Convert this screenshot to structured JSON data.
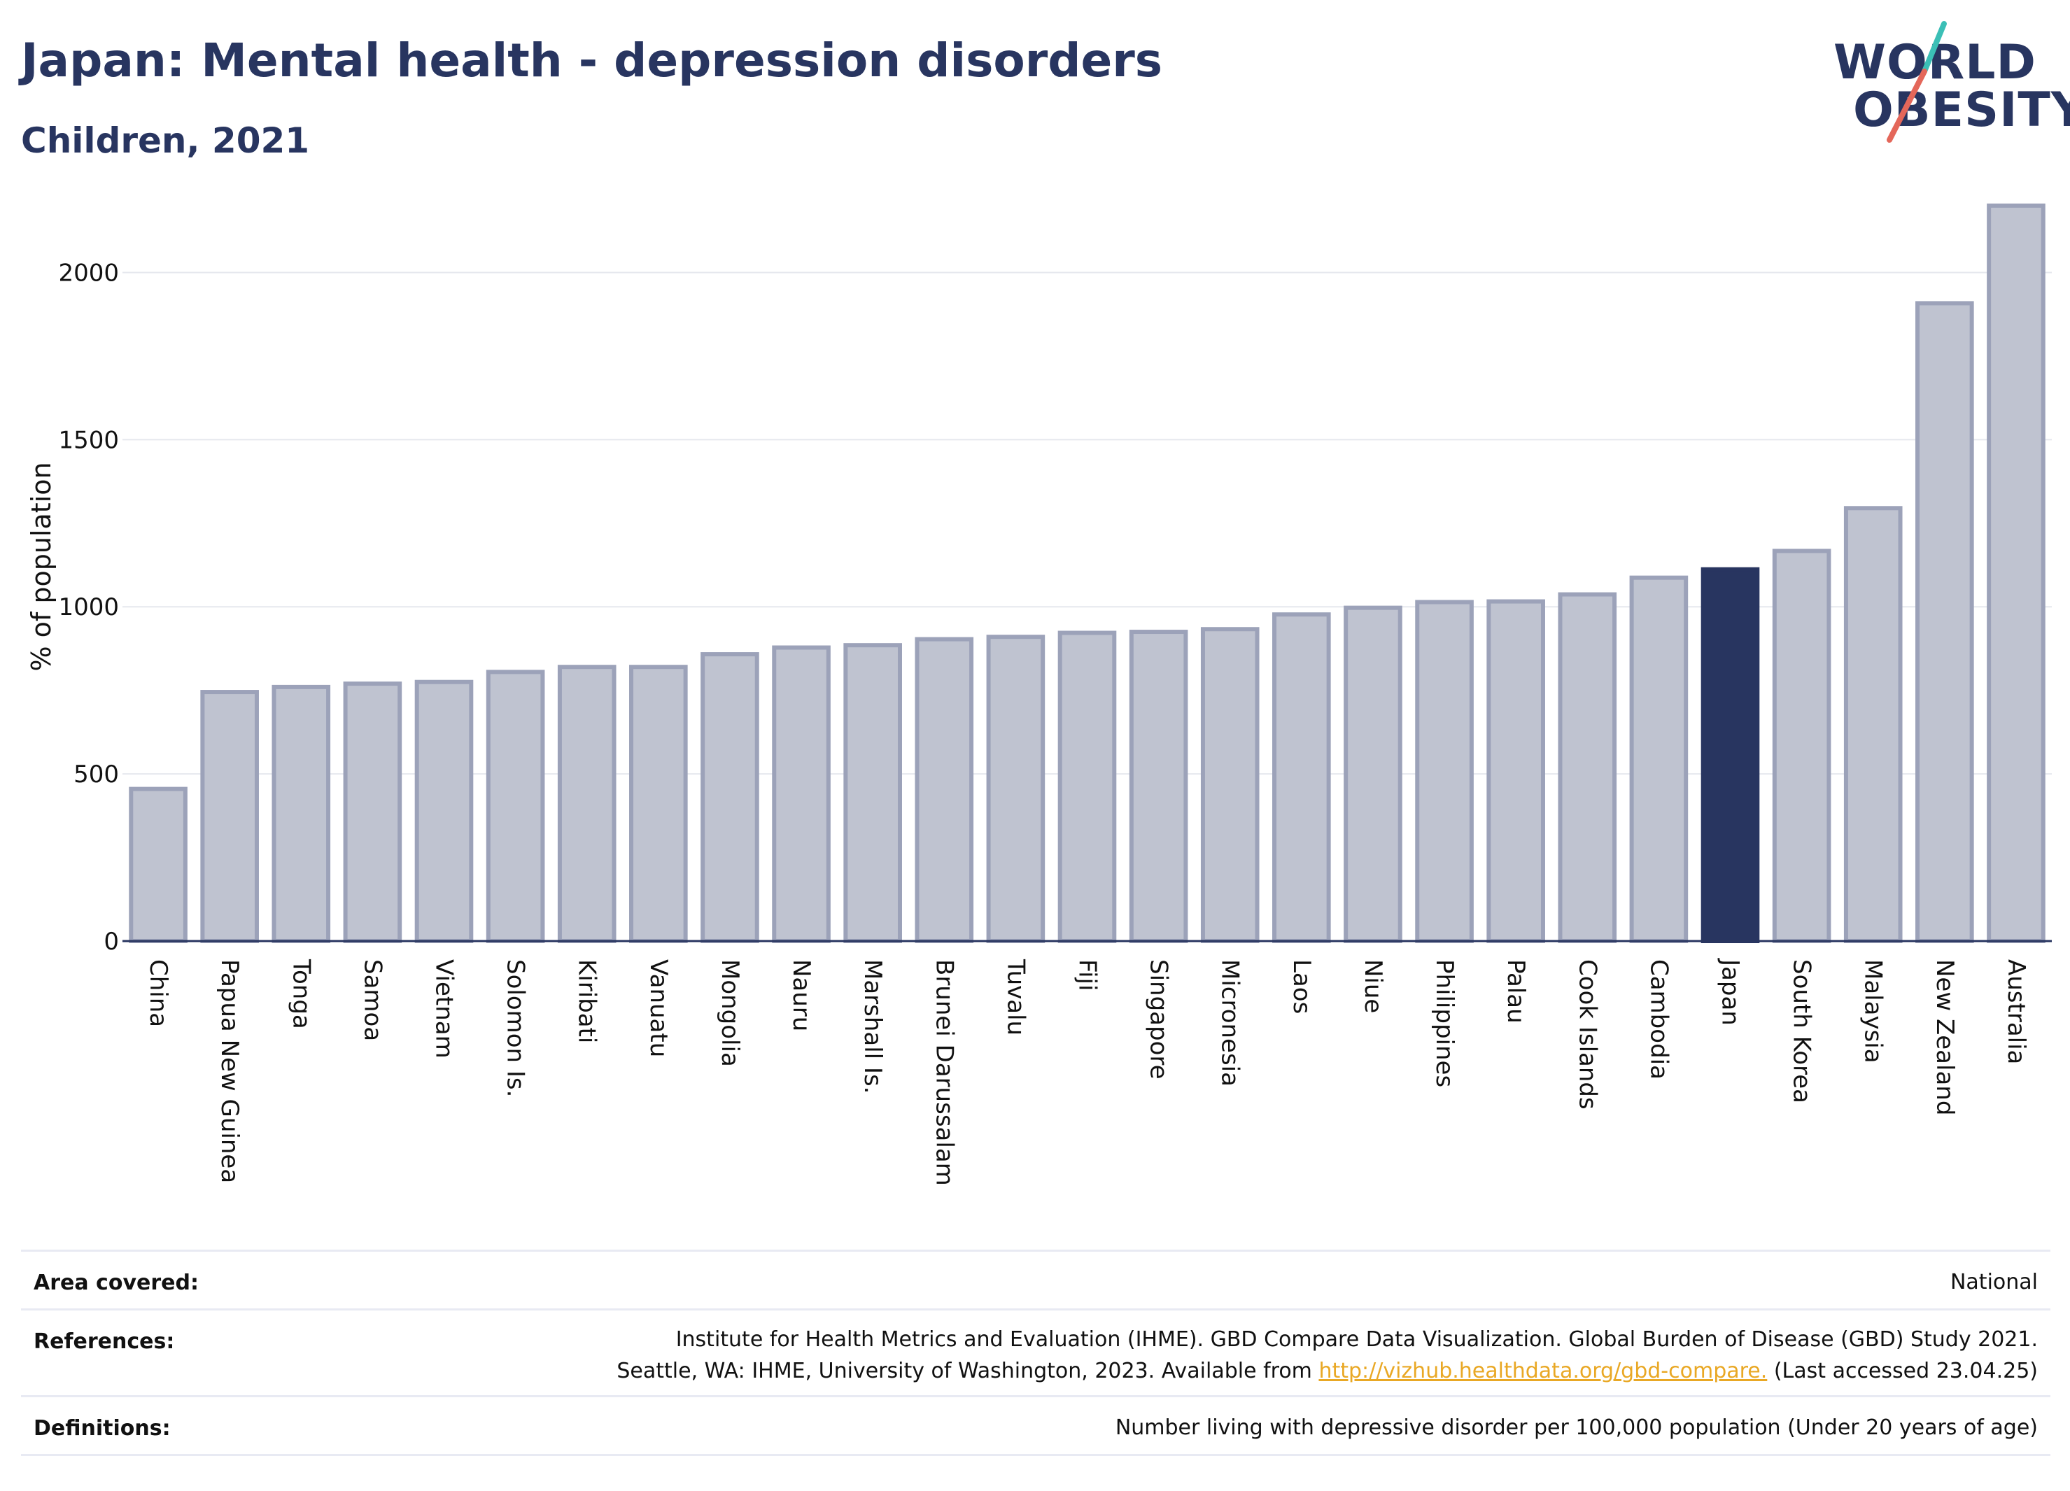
{
  "header": {
    "title": "Japan: Mental health - depression disorders",
    "subtitle": "Children, 2021"
  },
  "logo": {
    "line1": "WORLD",
    "line2": "OBESITY",
    "slash_colors": [
      "#3bbfb6",
      "#e4675a"
    ]
  },
  "chart_data": {
    "type": "bar",
    "title": "Japan: Mental health - depression disorders",
    "subtitle": "Children, 2021",
    "ylabel": "% of population",
    "xlabel": "",
    "ylim": [
      0,
      2250
    ],
    "yticks": [
      0,
      500,
      1000,
      1500,
      2000
    ],
    "grid": true,
    "highlight": "Japan",
    "colors": {
      "bar": "#bfc3d0",
      "bar_edge": "#9ca2b9",
      "highlight": "#283560",
      "axis": "#283560",
      "grid": "#e6e8ee"
    },
    "categories": [
      "China",
      "Papua New Guinea",
      "Tonga",
      "Samoa",
      "Vietnam",
      "Solomon Is.",
      "Kiribati",
      "Vanuatu",
      "Mongolia",
      "Nauru",
      "Marshall Is.",
      "Brunei Darussalam",
      "Tuvalu",
      "Fiji",
      "Singapore",
      "Micronesia",
      "Laos",
      "Niue",
      "Philippines",
      "Palau",
      "Cook Islands",
      "Cambodia",
      "Japan",
      "South Korea",
      "Malaysia",
      "New Zealand",
      "Australia"
    ],
    "values": [
      455,
      745,
      760,
      770,
      775,
      805,
      820,
      820,
      858,
      878,
      885,
      903,
      910,
      922,
      925,
      933,
      977,
      997,
      1014,
      1016,
      1037,
      1087,
      1112,
      1167,
      1295,
      1908,
      2200
    ]
  },
  "info": {
    "area_label": "Area covered:",
    "area_value": "National",
    "references_label": "References:",
    "references_line1": "Institute for Health Metrics and Evaluation (IHME). GBD Compare Data Visualization. Global Burden of Disease (GBD) Study 2021.",
    "references_line2_pre": "Seattle, WA: IHME, University of Washington, 2023. Available from ",
    "references_link": "http://vizhub.healthdata.org/gbd-compare.",
    "references_line2_post": " (Last accessed 23.04.25)",
    "definitions_label": "Definitions:",
    "definitions_value": "Number living with depressive disorder per 100,000 population (Under 20 years of age)"
  }
}
